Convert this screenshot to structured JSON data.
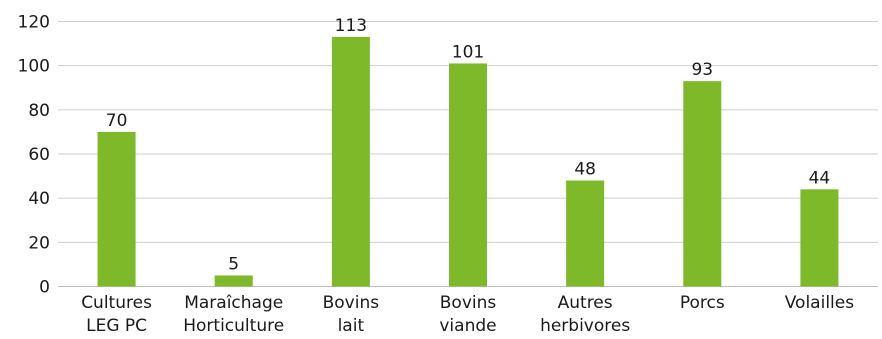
{
  "chart_data": {
    "type": "bar",
    "title": "",
    "xlabel": "",
    "ylabel": "",
    "categories": [
      [
        "Cultures",
        "LEG PC"
      ],
      [
        "Maraîchage",
        "Horticulture"
      ],
      [
        "Bovins",
        "lait"
      ],
      [
        "Bovins",
        "viande"
      ],
      [
        "Autres",
        "herbivores"
      ],
      [
        "Porcs"
      ],
      [
        "Volailles"
      ]
    ],
    "values": [
      70,
      5,
      113,
      101,
      48,
      93,
      44
    ],
    "data_labels": [
      "70",
      "5",
      "113",
      "101",
      "48",
      "93",
      "44"
    ],
    "ylim": [
      0,
      120
    ],
    "yticks": [
      0,
      20,
      40,
      60,
      80,
      100,
      120
    ],
    "ytick_labels": [
      "0",
      "20",
      "40",
      "60",
      "80",
      "100",
      "120"
    ],
    "grid": true,
    "legend": "none",
    "bar_color": "#7db928",
    "grid_color": "#cfcfcf",
    "text_color": "#1a1a1a"
  }
}
